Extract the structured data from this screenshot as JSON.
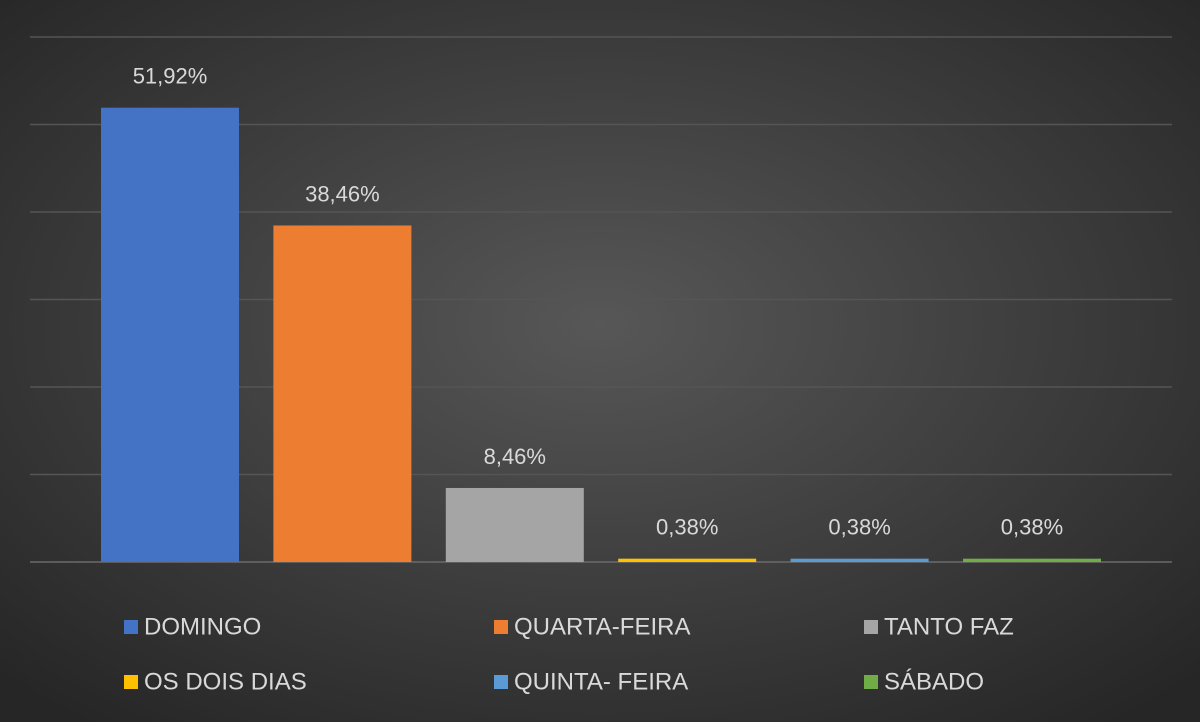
{
  "chart_data": {
    "type": "bar",
    "series": [
      {
        "name": "DOMINGO",
        "color": "#4472c4",
        "values": [
          51.92
        ],
        "value_labels": [
          "51,92%"
        ]
      },
      {
        "name": "QUARTA-FEIRA",
        "color": "#ed7d31",
        "values": [
          38.46
        ],
        "value_labels": [
          "38,46%"
        ]
      },
      {
        "name": "TANTO FAZ",
        "color": "#a5a5a5",
        "values": [
          8.46
        ],
        "value_labels": [
          "8,46%"
        ]
      },
      {
        "name": "OS DOIS DIAS",
        "color": "#ffc000",
        "values": [
          0.38
        ],
        "value_labels": [
          "0,38%"
        ]
      },
      {
        "name": "QUINTA- FEIRA",
        "color": "#5b9bd5",
        "values": [
          0.38
        ],
        "value_labels": [
          "0,38%"
        ]
      },
      {
        "name": "SÁBADO",
        "color": "#70ad47",
        "values": [
          0.38
        ],
        "value_labels": [
          "0,38%"
        ]
      }
    ],
    "ylim": [
      0,
      60
    ],
    "yticks": [
      0,
      10,
      20,
      30,
      40,
      50,
      60
    ],
    "grid": true,
    "legend": "bottom"
  }
}
